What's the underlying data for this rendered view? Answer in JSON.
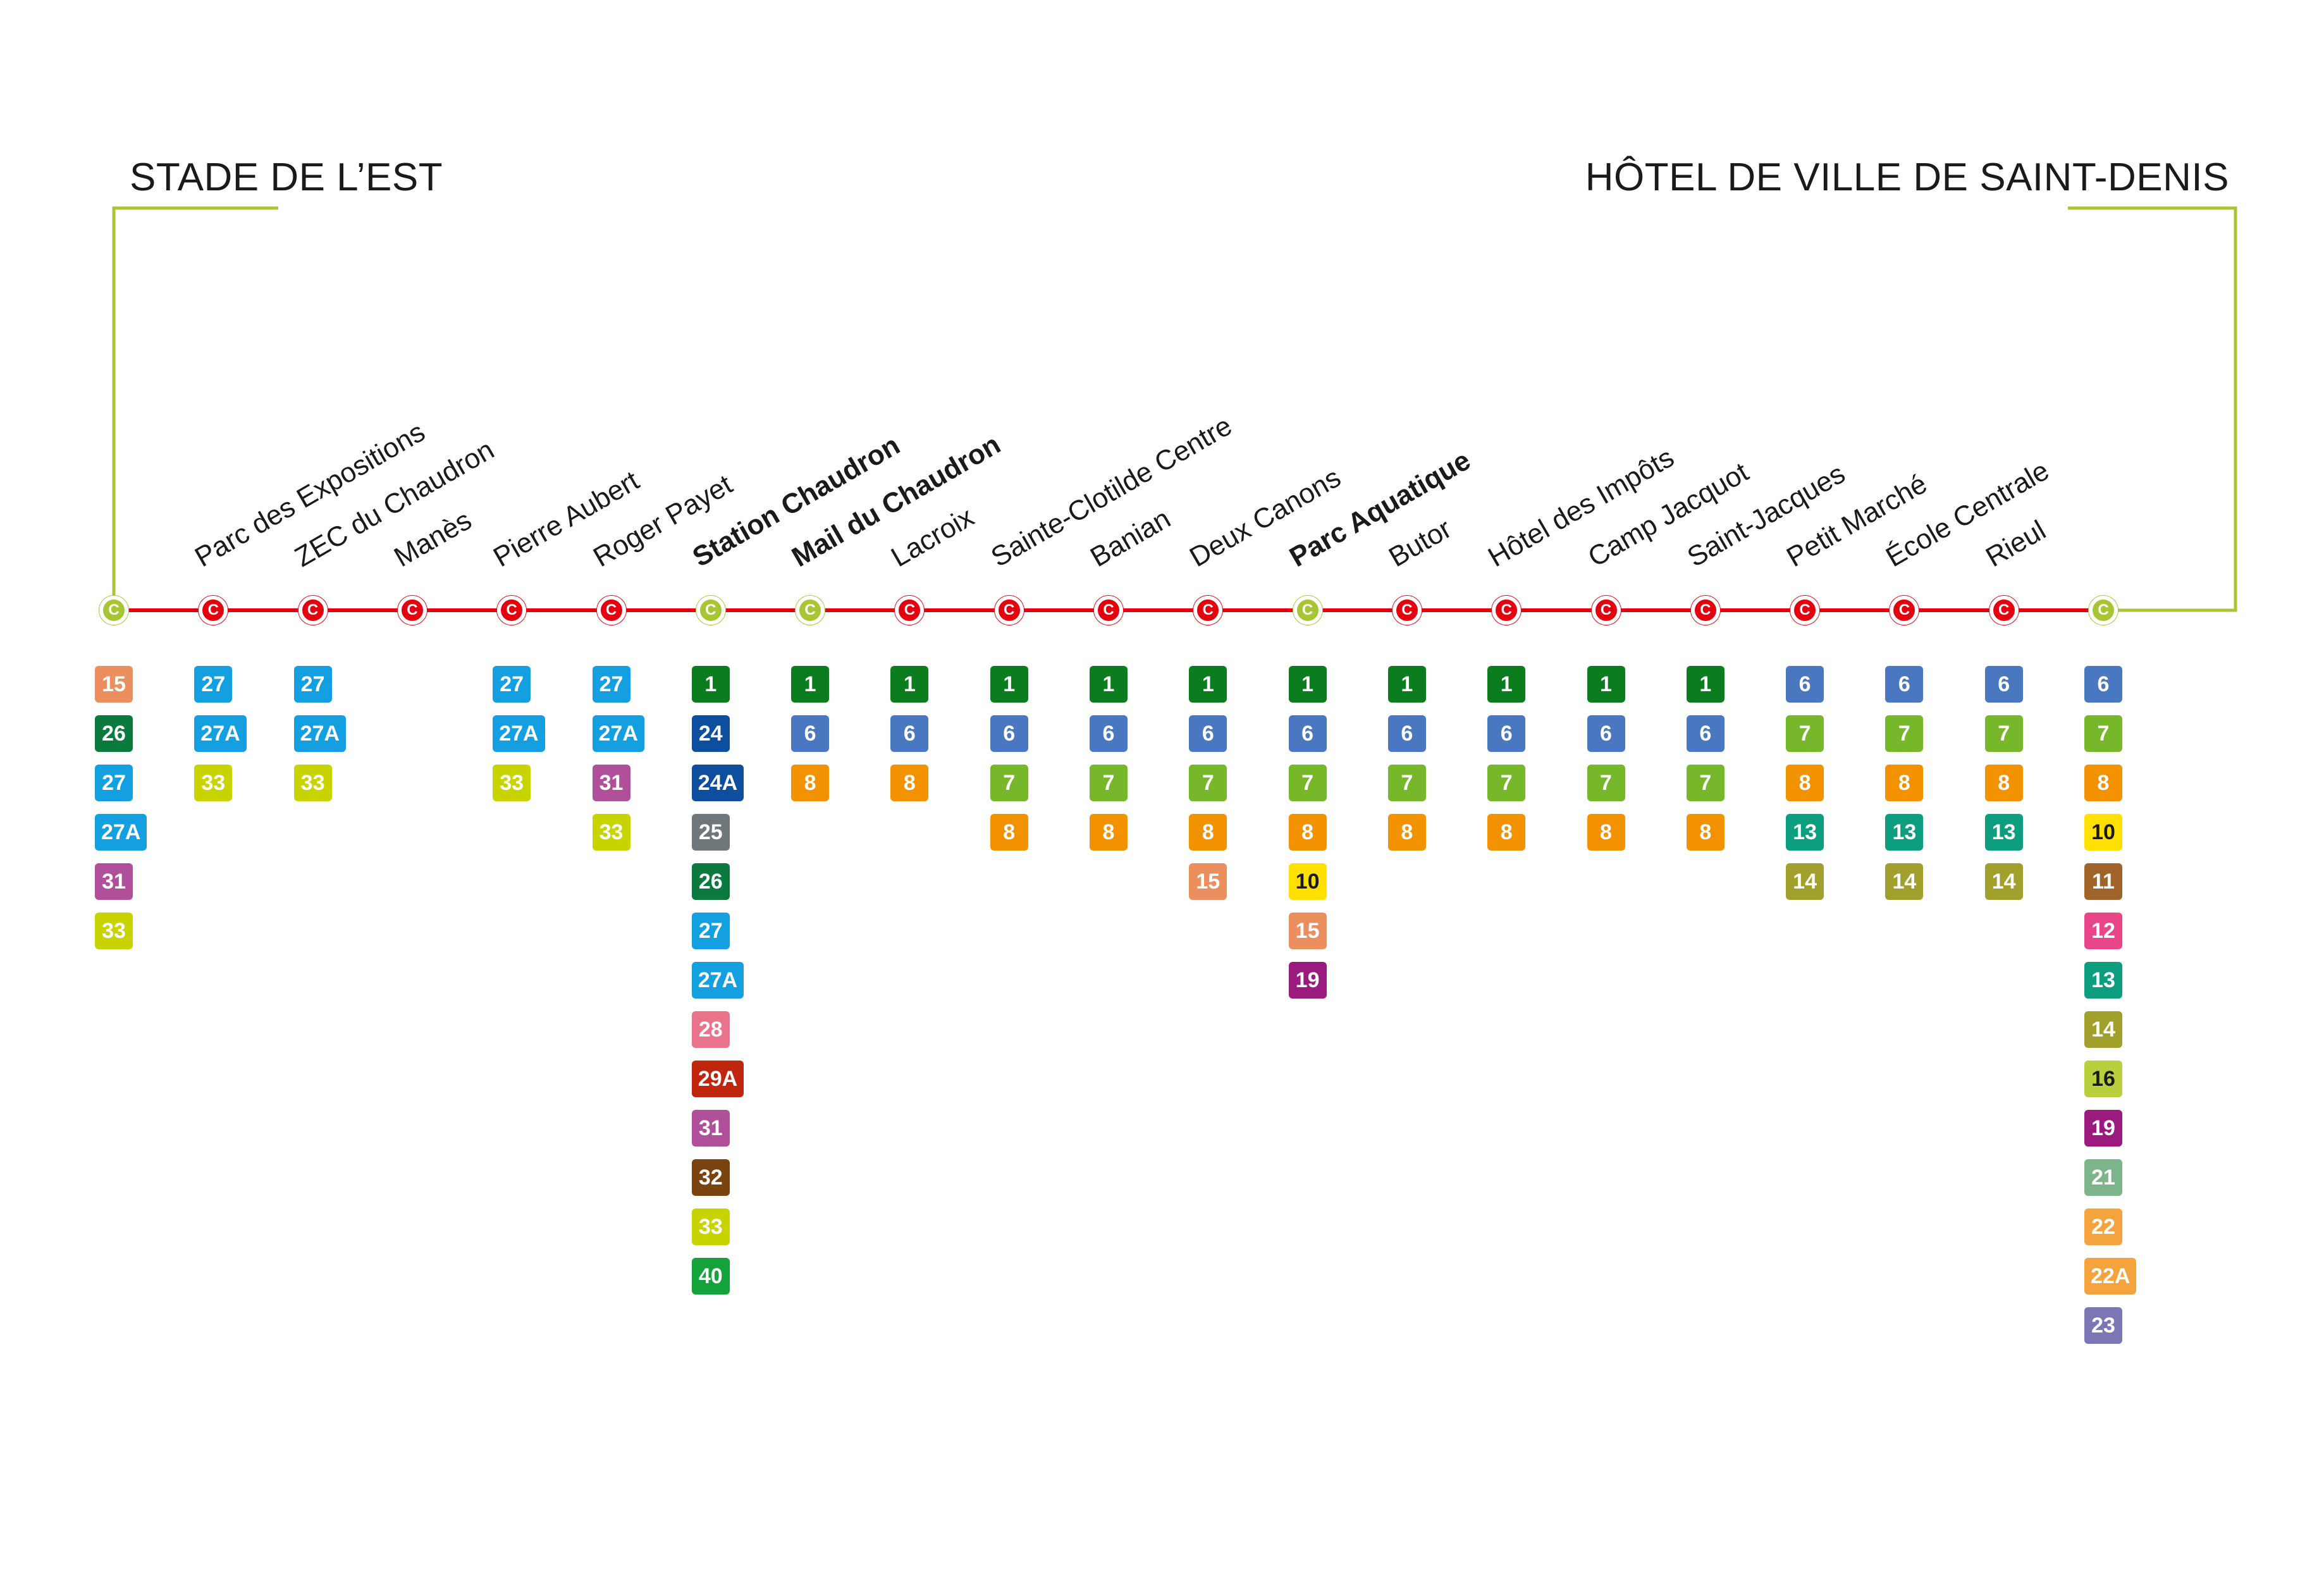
{
  "termini": {
    "left": "STADE DE L’EST",
    "right": "HÔTEL DE VILLE DE SAINT-DENIS"
  },
  "colors": {
    "line": "#e3000f",
    "connector": "#a8c633",
    "stop_red": "#e3000f",
    "stop_green": "#a8c633"
  },
  "stop_glyph": "C",
  "route_colors": {
    "1": "#0b7d1f",
    "6": "#4a78c0",
    "7": "#76b82a",
    "8": "#f39200",
    "10": "#ffe000",
    "11": "#a0642a",
    "12": "#e9468a",
    "13": "#0c9e7f",
    "14": "#a1a02c",
    "15": "#ec8f5e",
    "16": "#b9cf3c",
    "19": "#9b1a7d",
    "21": "#7cb58a",
    "22": "#f4a33d",
    "22A": "#f4a33d",
    "23": "#7b77b5",
    "24": "#0d4f9e",
    "24A": "#0d4f9e",
    "25": "#6f777b",
    "26": "#0a7a3e",
    "27": "#14a0e0",
    "27A": "#14a0e0",
    "28": "#e9738a",
    "29A": "#c0260e",
    "31": "#b0509a",
    "32": "#7a4411",
    "33": "#c8d400",
    "40": "#13a33a"
  },
  "dark_text_routes": [
    "10",
    "16"
  ],
  "stops": [
    {
      "name": "",
      "type": "terminus-left",
      "dot": "green",
      "bold": false,
      "routes": [
        "15",
        "26",
        "27",
        "27A",
        "31",
        "33"
      ]
    },
    {
      "name": "Parc des Expositions",
      "dot": "red",
      "bold": false,
      "routes": [
        "27",
        "27A",
        "33"
      ]
    },
    {
      "name": "ZEC du Chaudron",
      "dot": "red",
      "bold": false,
      "routes": [
        "27",
        "27A",
        "33"
      ]
    },
    {
      "name": "Manès",
      "dot": "red",
      "bold": false,
      "routes": []
    },
    {
      "name": "Pierre Aubert",
      "dot": "red",
      "bold": false,
      "routes": [
        "27",
        "27A",
        "33"
      ]
    },
    {
      "name": "Roger Payet",
      "dot": "red",
      "bold": false,
      "routes": [
        "27",
        "27A",
        "31",
        "33"
      ]
    },
    {
      "name": "Station Chaudron",
      "dot": "green",
      "bold": true,
      "routes": [
        "1",
        "24",
        "24A",
        "25",
        "26",
        "27",
        "27A",
        "28",
        "29A",
        "31",
        "32",
        "33",
        "40"
      ]
    },
    {
      "name": "Mail du Chaudron",
      "dot": "green",
      "bold": true,
      "routes": [
        "1",
        "6",
        "8"
      ]
    },
    {
      "name": "Lacroix",
      "dot": "red",
      "bold": false,
      "routes": [
        "1",
        "6",
        "8"
      ]
    },
    {
      "name": "Sainte-Clotilde Centre",
      "dot": "red",
      "bold": false,
      "routes": [
        "1",
        "6",
        "7",
        "8"
      ]
    },
    {
      "name": "Banian",
      "dot": "red",
      "bold": false,
      "routes": [
        "1",
        "6",
        "7",
        "8"
      ]
    },
    {
      "name": "Deux Canons",
      "dot": "red",
      "bold": false,
      "routes": [
        "1",
        "6",
        "7",
        "8",
        "15"
      ]
    },
    {
      "name": "Parc Aquatique",
      "dot": "green",
      "bold": true,
      "routes": [
        "1",
        "6",
        "7",
        "8",
        "10",
        "15",
        "19"
      ]
    },
    {
      "name": "Butor",
      "dot": "red",
      "bold": false,
      "routes": [
        "1",
        "6",
        "7",
        "8"
      ]
    },
    {
      "name": "Hôtel des Impôts",
      "dot": "red",
      "bold": false,
      "routes": [
        "1",
        "6",
        "7",
        "8"
      ]
    },
    {
      "name": "Camp Jacquot",
      "dot": "red",
      "bold": false,
      "routes": [
        "1",
        "6",
        "7",
        "8"
      ]
    },
    {
      "name": "Saint-Jacques",
      "dot": "red",
      "bold": false,
      "routes": [
        "1",
        "6",
        "7",
        "8"
      ]
    },
    {
      "name": "Petit Marché",
      "dot": "red",
      "bold": false,
      "routes": [
        "6",
        "7",
        "8",
        "13",
        "14"
      ]
    },
    {
      "name": "École Centrale",
      "dot": "red",
      "bold": false,
      "routes": [
        "6",
        "7",
        "8",
        "13",
        "14"
      ]
    },
    {
      "name": "Rieul",
      "dot": "red",
      "bold": false,
      "routes": [
        "6",
        "7",
        "8",
        "13",
        "14"
      ]
    },
    {
      "name": "",
      "type": "terminus-right",
      "dot": "green",
      "bold": false,
      "routes": [
        "6",
        "7",
        "8",
        "10",
        "11",
        "12",
        "13",
        "14",
        "16",
        "19",
        "21",
        "22",
        "22A",
        "23"
      ]
    }
  ]
}
